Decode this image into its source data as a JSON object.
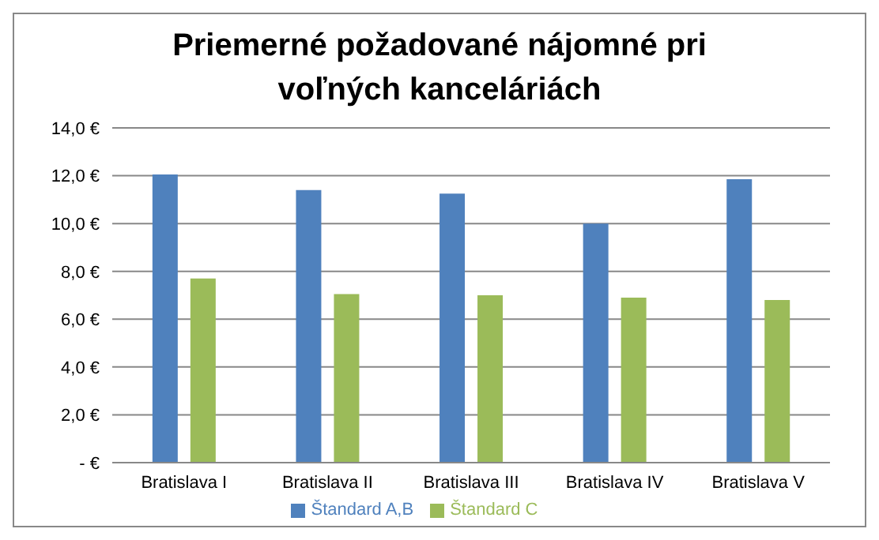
{
  "chart_data": {
    "type": "bar",
    "title": "Priemerné požadované nájomné pri voľných kanceláriách",
    "categories": [
      "Bratislava I",
      "Bratislava II",
      "Bratislava III",
      "Bratislava IV",
      "Bratislava V"
    ],
    "series": [
      {
        "name": "Štandard A,B",
        "color": "#4f81bd",
        "values": [
          12.05,
          11.4,
          11.25,
          10.0,
          11.85
        ]
      },
      {
        "name": "Štandard C",
        "color": "#9bbb59",
        "values": [
          7.7,
          7.05,
          7.0,
          6.9,
          6.8
        ]
      }
    ],
    "ylim": [
      0,
      14
    ],
    "yticks": [
      {
        "value": 0,
        "label": "-   €"
      },
      {
        "value": 2,
        "label": "2,0 €"
      },
      {
        "value": 4,
        "label": "4,0 €"
      },
      {
        "value": 6,
        "label": "6,0 €"
      },
      {
        "value": 8,
        "label": "8,0 €"
      },
      {
        "value": 10,
        "label": "10,0 €"
      },
      {
        "value": 12,
        "label": "12,0 €"
      },
      {
        "value": 14,
        "label": "14,0 €"
      }
    ],
    "grid": "y",
    "legend": "bottom"
  }
}
